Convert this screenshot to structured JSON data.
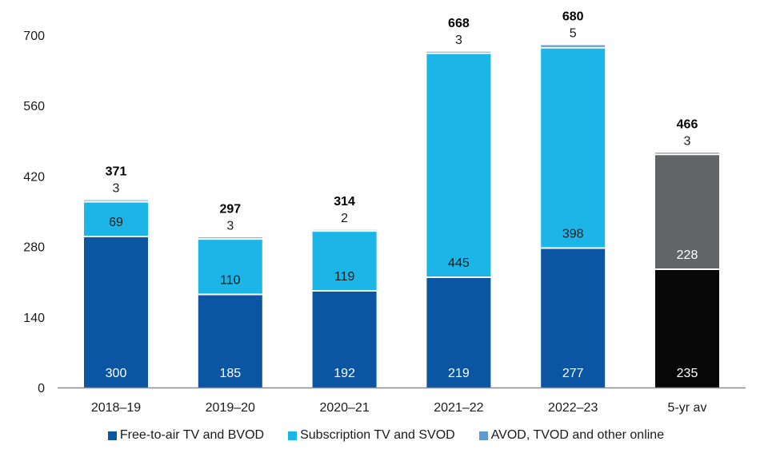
{
  "chart_data": {
    "type": "bar",
    "stacked": true,
    "title": "",
    "xlabel": "",
    "ylabel": "",
    "ylim": [
      0,
      700
    ],
    "yticks": [
      0,
      140,
      280,
      420,
      560,
      700
    ],
    "grid": false,
    "legend_position": "bottom",
    "categories": [
      "2018–19",
      "2019–20",
      "2020–21",
      "2021–22",
      "2022–23",
      "5-yr av"
    ],
    "series": [
      {
        "name": "Free-to-air TV and BVOD",
        "color": "#0b55a3",
        "values": [
          300,
          185,
          192,
          219,
          277,
          235
        ]
      },
      {
        "name": "Subscription TV and SVOD",
        "color": "#1cb5e8",
        "values": [
          69,
          110,
          119,
          445,
          398,
          228
        ]
      },
      {
        "name": "AVOD, TVOD and other online",
        "color": "#5b9bd5",
        "values": [
          3,
          3,
          2,
          3,
          5,
          3
        ]
      }
    ],
    "totals": [
      371,
      297,
      314,
      668,
      680,
      466
    ],
    "average_bar_colors": [
      "#070707",
      "#636466",
      "#636466"
    ]
  }
}
